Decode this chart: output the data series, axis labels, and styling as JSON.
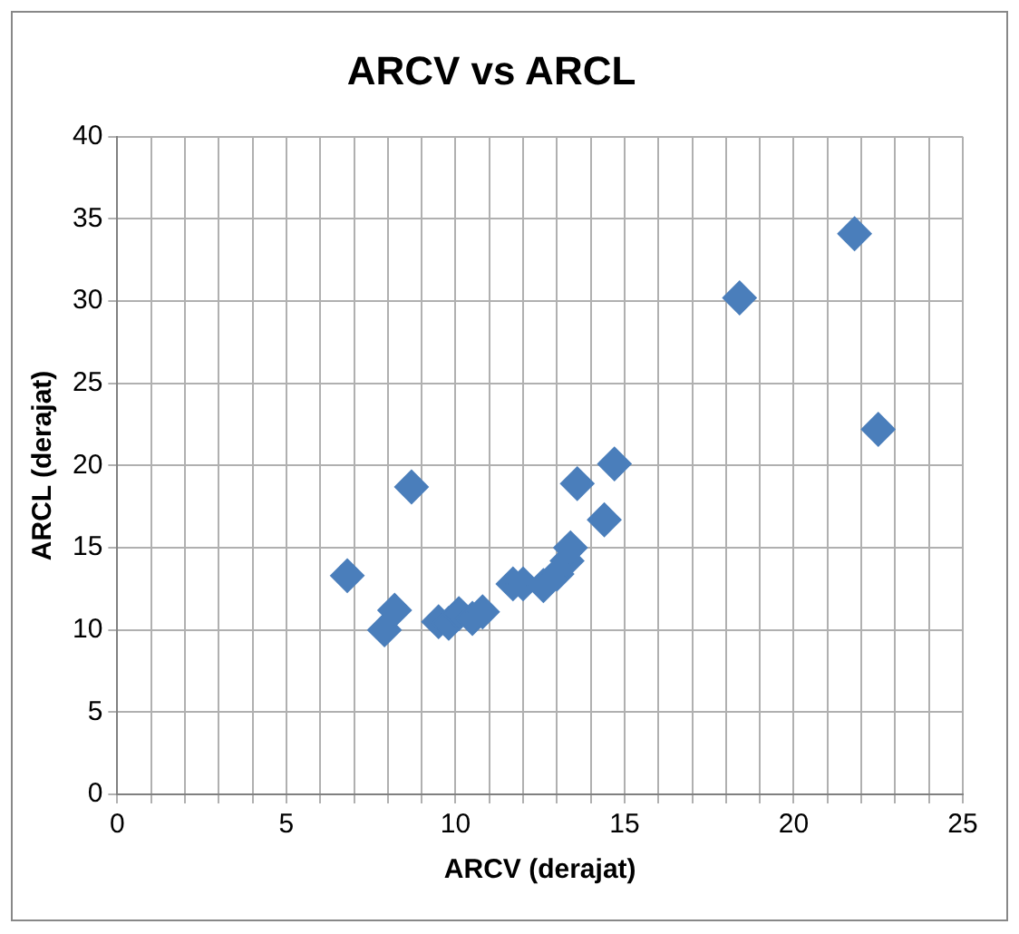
{
  "chart_data": {
    "type": "scatter",
    "title": "ARCV vs ARCL",
    "xlabel": "ARCV (derajat)",
    "ylabel": "ARCL (derajat)",
    "x": [
      6.8,
      7.9,
      8.2,
      8.7,
      9.5,
      9.8,
      10.1,
      10.5,
      10.8,
      11.7,
      12.0,
      12.6,
      13.0,
      13.3,
      13.4,
      13.6,
      14.4,
      14.7,
      18.4,
      21.8,
      22.5
    ],
    "series": [
      {
        "color": "#4a7ebb",
        "values": [
          13.3,
          10.0,
          11.2,
          18.7,
          10.5,
          10.4,
          11.0,
          10.7,
          11.1,
          12.8,
          12.8,
          12.7,
          13.4,
          14.2,
          15.0,
          18.9,
          16.7,
          20.1,
          30.2,
          34.1,
          22.2
        ]
      }
    ],
    "xlim": [
      0,
      25
    ],
    "xticks": [
      0,
      {
        "value": 1,
        "label": null
      },
      {
        "value": 2,
        "label": null
      },
      {
        "value": 3,
        "label": null
      },
      {
        "value": 4,
        "label": null
      },
      5,
      {
        "value": 6,
        "label": null
      },
      {
        "value": 7,
        "label": null
      },
      {
        "value": 8,
        "label": null
      },
      {
        "value": 9,
        "label": null
      },
      10,
      {
        "value": 11,
        "label": null
      },
      {
        "value": 12,
        "label": null
      },
      {
        "value": 13,
        "label": null
      },
      {
        "value": 14,
        "label": null
      },
      15,
      {
        "value": 16,
        "label": null
      },
      {
        "value": 17,
        "label": null
      },
      {
        "value": 18,
        "label": null
      },
      {
        "value": 19,
        "label": null
      },
      20,
      {
        "value": 21,
        "label": null
      },
      {
        "value": 22,
        "label": null
      },
      {
        "value": 23,
        "label": null
      },
      {
        "value": 24,
        "label": null
      },
      25
    ],
    "ylim": [
      0,
      40
    ],
    "yticks": [
      0,
      5,
      10,
      15,
      20,
      25,
      30,
      35,
      40
    ],
    "grid": true,
    "legend": false,
    "marker": "diamond"
  }
}
